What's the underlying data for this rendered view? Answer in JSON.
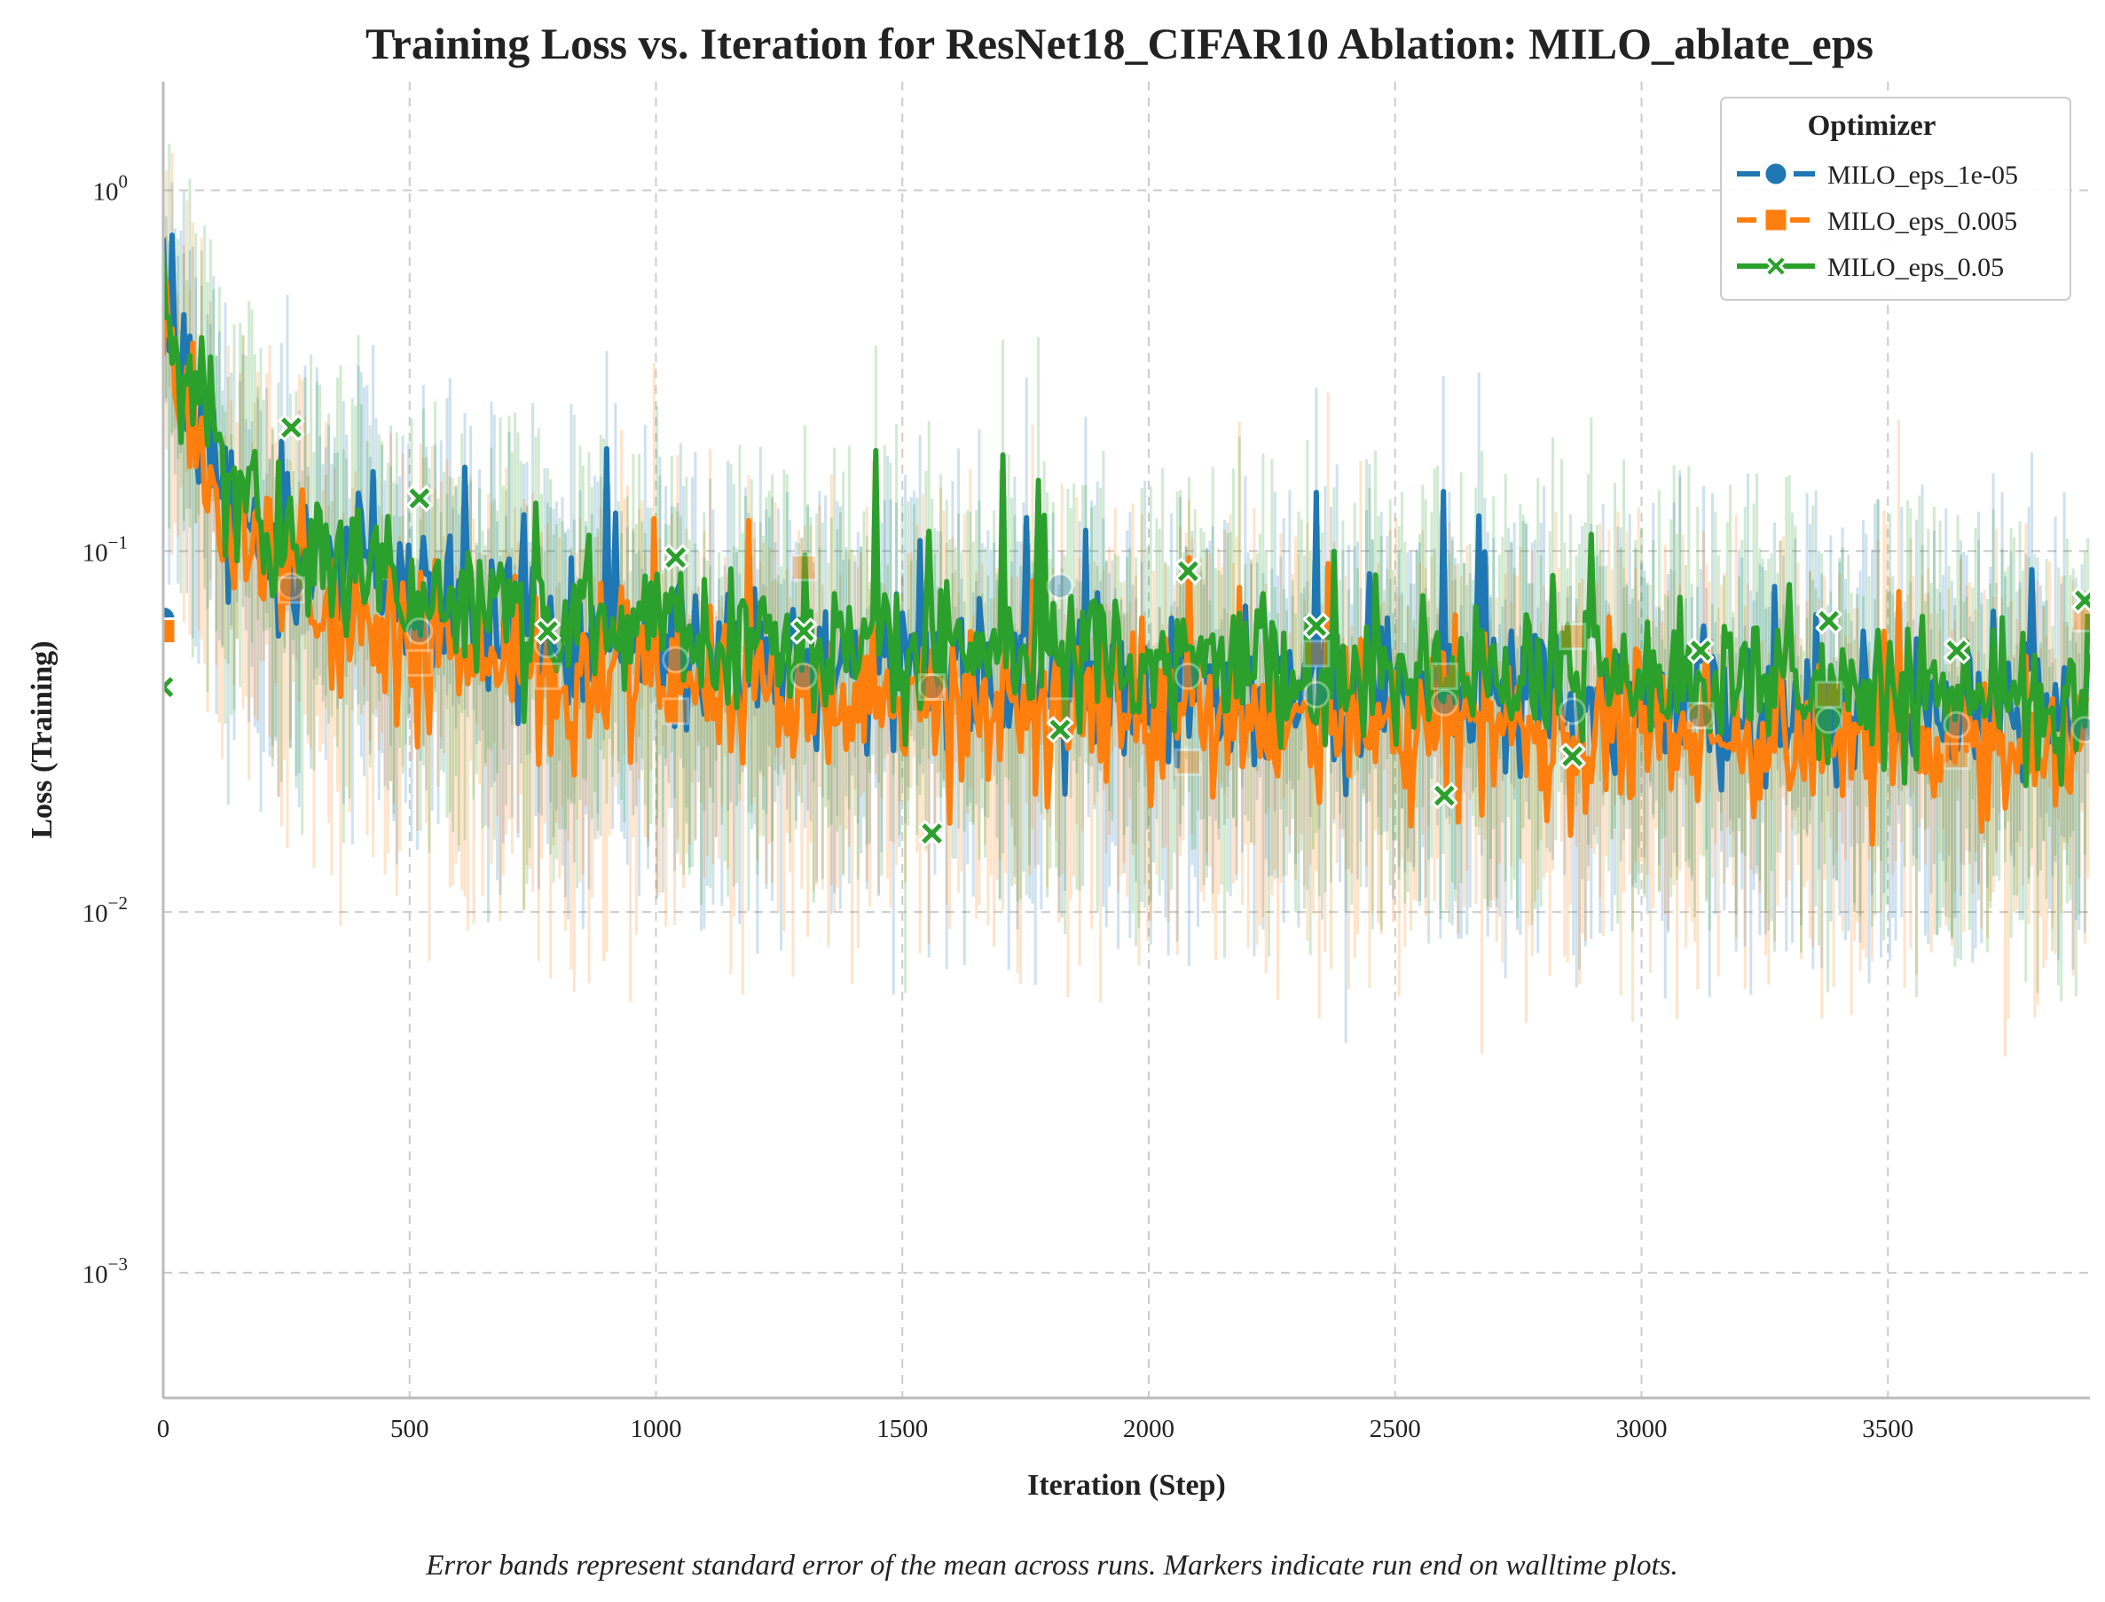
{
  "chart_data": {
    "type": "line",
    "title": "Training Loss vs. Iteration for ResNet18_CIFAR10 Ablation: MILO_ablate_eps",
    "xlabel": "Iteration (Step)",
    "ylabel": "Loss (Training)",
    "caption": "Error bands represent standard error of the mean across runs. Markers indicate run end on walltime plots.",
    "x_range": [
      0,
      3910
    ],
    "y_range": [
      0.00045,
      2.0
    ],
    "y_scale": "log",
    "grid": true,
    "legend": {
      "title": "Optimizer",
      "placement": "top-right"
    },
    "x_ticks": [
      {
        "value": 0,
        "label": "0"
      },
      {
        "value": 500,
        "label": "500"
      },
      {
        "value": 1000,
        "label": "1000"
      },
      {
        "value": 1500,
        "label": "1500"
      },
      {
        "value": 2000,
        "label": "2000"
      },
      {
        "value": 2500,
        "label": "2500"
      },
      {
        "value": 3000,
        "label": "3000"
      },
      {
        "value": 3500,
        "label": "3500"
      }
    ],
    "y_ticks": [
      {
        "value": 1,
        "base": "10",
        "exp": "0"
      },
      {
        "value": 0.1,
        "base": "10",
        "exp": "−1"
      },
      {
        "value": 0.01,
        "base": "10",
        "exp": "−2"
      },
      {
        "value": 0.001,
        "base": "10",
        "exp": "−3"
      }
    ],
    "series": [
      {
        "name": "MILO_eps_1e-05",
        "color": "#1f77b4",
        "marker": "circle",
        "trend": {
          "x": [
            0,
            50,
            150,
            300,
            500,
            800,
            1200,
            1600,
            2000,
            2500,
            3000,
            3500,
            3910
          ],
          "y": [
            0.6,
            0.25,
            0.13,
            0.09,
            0.07,
            0.058,
            0.05,
            0.045,
            0.042,
            0.04,
            0.038,
            0.036,
            0.035
          ]
        },
        "markers": {
          "x": [
            0,
            260,
            520,
            780,
            1040,
            1300,
            1560,
            1820,
            2080,
            2340,
            2600,
            2860,
            3120,
            3380,
            3640,
            3900
          ],
          "y": [
            0.065,
            0.08,
            0.06,
            0.055,
            0.05,
            0.045,
            0.042,
            0.08,
            0.045,
            0.04,
            0.038,
            0.036,
            0.035,
            0.034,
            0.033,
            0.032
          ]
        }
      },
      {
        "name": "MILO_eps_0.005",
        "color": "#ff7f0e",
        "marker": "square",
        "trend": {
          "x": [
            0,
            50,
            150,
            300,
            500,
            800,
            1200,
            1600,
            2000,
            2500,
            3000,
            3500,
            3910
          ],
          "y": [
            0.5,
            0.22,
            0.11,
            0.075,
            0.058,
            0.048,
            0.042,
            0.038,
            0.035,
            0.033,
            0.031,
            0.03,
            0.029
          ]
        },
        "markers": {
          "x": [
            0,
            260,
            520,
            780,
            1040,
            1300,
            1560,
            1820,
            2080,
            2340,
            2600,
            2860,
            3120,
            3380,
            3640,
            3900
          ],
          "y": [
            0.06,
            0.078,
            0.049,
            0.045,
            0.036,
            0.09,
            0.042,
            0.036,
            0.026,
            0.052,
            0.045,
            0.058,
            0.035,
            0.04,
            0.027,
            0.065
          ]
        }
      },
      {
        "name": "MILO_eps_0.05",
        "color": "#2ca02c",
        "marker": "x",
        "trend": {
          "x": [
            0,
            50,
            150,
            300,
            500,
            800,
            1200,
            1600,
            2000,
            2500,
            3000,
            3500,
            3910
          ],
          "y": [
            0.6,
            0.26,
            0.14,
            0.1,
            0.08,
            0.066,
            0.058,
            0.052,
            0.049,
            0.046,
            0.044,
            0.042,
            0.041
          ]
        },
        "markers": {
          "x": [
            0,
            260,
            520,
            780,
            1040,
            1300,
            1560,
            1820,
            2080,
            2340,
            2600,
            2860,
            3120,
            3380,
            3640,
            3900
          ],
          "y": [
            0.042,
            0.22,
            0.14,
            0.06,
            0.096,
            0.06,
            0.0165,
            0.032,
            0.088,
            0.062,
            0.021,
            0.027,
            0.053,
            0.064,
            0.053,
            0.073
          ]
        }
      }
    ]
  }
}
